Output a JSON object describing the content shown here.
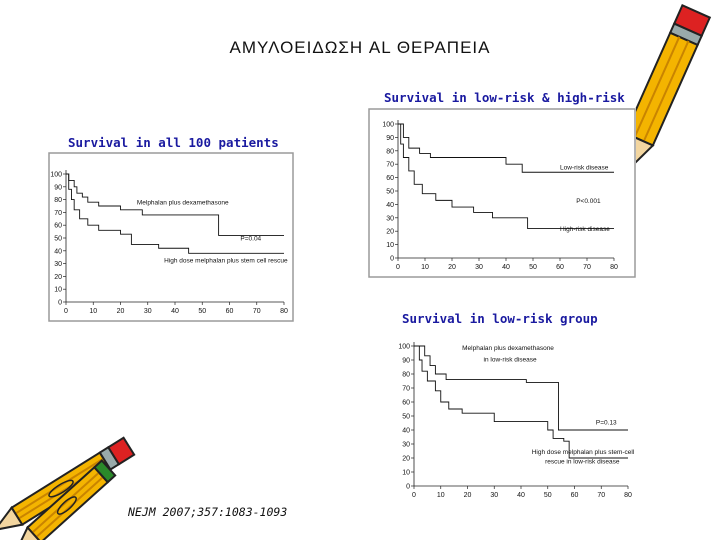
{
  "page": {
    "title": "ΑΜΥΛΟΕΙΔΩΣΗ AL ΘΕΡΑΠΕΙΑ",
    "reference": "NEJM 2007;357:1083-1093"
  },
  "colors": {
    "caption": "#1a1aa0",
    "frame": "#9a9a9a",
    "curve": "#111111"
  },
  "icons": [
    "pencil-icon",
    "pencils-icon"
  ],
  "chart_data": [
    {
      "id": "all",
      "type": "line",
      "caption": "Survival in all 100 patients",
      "x": {
        "ticks": [
          0,
          10,
          20,
          30,
          40,
          50,
          60,
          70,
          80
        ],
        "range": [
          0,
          80
        ]
      },
      "y": {
        "ticks": [
          0,
          10,
          20,
          30,
          40,
          50,
          60,
          70,
          80,
          90,
          100
        ],
        "range": [
          0,
          100
        ]
      },
      "series": [
        {
          "name": "Melphalan plus dexamethasone",
          "points": [
            [
              0,
              100
            ],
            [
              1,
              95
            ],
            [
              3,
              90
            ],
            [
              4,
              85
            ],
            [
              6,
              82
            ],
            [
              8,
              78
            ],
            [
              12,
              75
            ],
            [
              20,
              72
            ],
            [
              28,
              68
            ],
            [
              56,
              68
            ],
            [
              56,
              52
            ],
            [
              80,
              52
            ]
          ]
        },
        {
          "name": "High dose melphalan plus stem cell rescue",
          "points": [
            [
              0,
              100
            ],
            [
              1,
              88
            ],
            [
              2,
              80
            ],
            [
              3,
              72
            ],
            [
              5,
              65
            ],
            [
              8,
              60
            ],
            [
              12,
              56
            ],
            [
              20,
              53
            ],
            [
              24,
              45
            ],
            [
              32,
              45
            ],
            [
              34,
              42
            ],
            [
              45,
              42
            ],
            [
              45,
              38
            ],
            [
              80,
              38
            ]
          ]
        }
      ],
      "annotations": [
        {
          "text": "Melphalan plus dexamethasone",
          "x": 26,
          "y": 76
        },
        {
          "text": "P=0.04",
          "x": 64,
          "y": 48
        },
        {
          "text": "High dose melphalan plus stem cell rescue",
          "x": 36,
          "y": 31
        }
      ]
    },
    {
      "id": "lowhigh",
      "type": "line",
      "caption": "Survival in low-risk & high-risk",
      "x": {
        "ticks": [
          0,
          10,
          20,
          30,
          40,
          50,
          60,
          70,
          80
        ],
        "range": [
          0,
          80
        ]
      },
      "y": {
        "ticks": [
          0,
          10,
          20,
          30,
          40,
          50,
          60,
          70,
          80,
          90,
          100
        ],
        "range": [
          0,
          100
        ]
      },
      "series": [
        {
          "name": "Low-risk disease",
          "points": [
            [
              0,
              100
            ],
            [
              2,
              90
            ],
            [
              4,
              82
            ],
            [
              8,
              78
            ],
            [
              12,
              75
            ],
            [
              40,
              75
            ],
            [
              40,
              70
            ],
            [
              46,
              70
            ],
            [
              46,
              64
            ],
            [
              80,
              64
            ]
          ]
        },
        {
          "name": "High-risk disease",
          "points": [
            [
              0,
              100
            ],
            [
              1,
              85
            ],
            [
              2,
              75
            ],
            [
              4,
              65
            ],
            [
              6,
              55
            ],
            [
              9,
              48
            ],
            [
              14,
              43
            ],
            [
              20,
              38
            ],
            [
              28,
              34
            ],
            [
              35,
              30
            ],
            [
              48,
              28
            ],
            [
              48,
              22
            ],
            [
              80,
              22
            ]
          ]
        }
      ],
      "annotations": [
        {
          "text": "Low-risk disease",
          "x": 60,
          "y": 66
        },
        {
          "text": "P<0.001",
          "x": 66,
          "y": 41
        },
        {
          "text": "High-risk disease",
          "x": 60,
          "y": 20
        }
      ]
    },
    {
      "id": "low",
      "type": "line",
      "caption": "Survival in low-risk group",
      "x": {
        "ticks": [
          0,
          10,
          20,
          30,
          40,
          50,
          60,
          70,
          80
        ],
        "range": [
          0,
          80
        ]
      },
      "y": {
        "ticks": [
          0,
          10,
          20,
          30,
          40,
          50,
          60,
          70,
          80,
          90,
          100
        ],
        "range": [
          0,
          100
        ]
      },
      "series": [
        {
          "name": "Melphalan plus dexamethasone in low-risk disease",
          "points": [
            [
              0,
              100
            ],
            [
              4,
              93
            ],
            [
              6,
              86
            ],
            [
              8,
              80
            ],
            [
              12,
              80
            ],
            [
              12,
              76
            ],
            [
              42,
              76
            ],
            [
              42,
              74
            ],
            [
              54,
              74
            ],
            [
              54,
              40
            ],
            [
              80,
              40
            ]
          ]
        },
        {
          "name": "High dose melphalan plus stem-cell rescue in low-risk disease",
          "points": [
            [
              0,
              100
            ],
            [
              2,
              90
            ],
            [
              3,
              82
            ],
            [
              5,
              75
            ],
            [
              8,
              68
            ],
            [
              10,
              60
            ],
            [
              13,
              55
            ],
            [
              18,
              52
            ],
            [
              24,
              52
            ],
            [
              30,
              46
            ],
            [
              50,
              40
            ],
            [
              52,
              34
            ],
            [
              56,
              32
            ],
            [
              58,
              20
            ],
            [
              80,
              20
            ]
          ]
        }
      ],
      "annotations": [
        {
          "text": "Melphalan plus dexamethasone",
          "x": 18,
          "y": 97
        },
        {
          "text": "in low-risk disease",
          "x": 26,
          "y": 89
        },
        {
          "text": "P=0.13",
          "x": 68,
          "y": 44
        },
        {
          "text": "High dose melphalan plus stem-cell",
          "x": 44,
          "y": 23
        },
        {
          "text": "rescue in low-risk disease",
          "x": 49,
          "y": 16
        }
      ]
    }
  ]
}
